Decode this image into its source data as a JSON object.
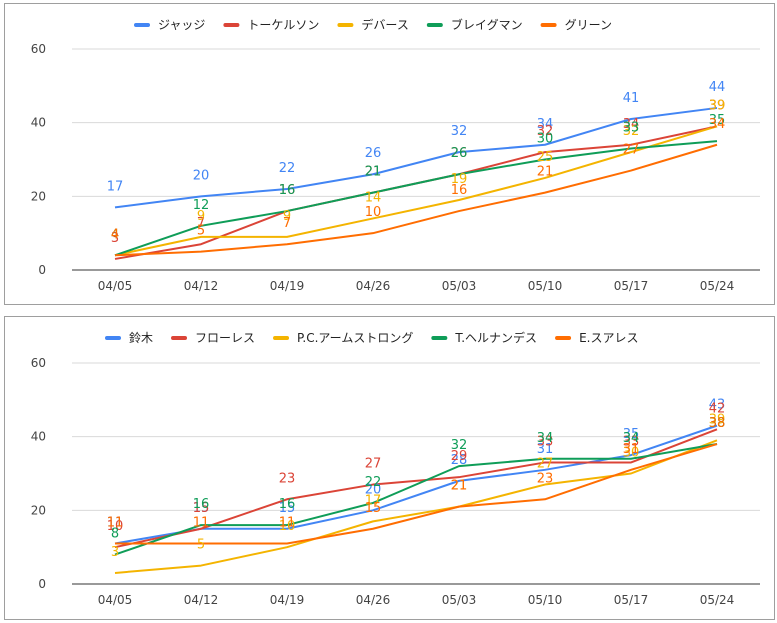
{
  "chart_data": [
    {
      "type": "line",
      "title": "",
      "xlabel": "",
      "ylabel": "",
      "ylim": [
        0,
        60
      ],
      "yticks": [
        "0",
        "20",
        "40",
        "60"
      ],
      "grid": true,
      "legend_position": "top",
      "categories": [
        "04/05",
        "04/12",
        "04/19",
        "04/26",
        "05/03",
        "05/10",
        "05/17",
        "05/24"
      ],
      "series": [
        {
          "name": "ジャッジ",
          "color": "#4285f4",
          "values": [
            17,
            20,
            22,
            26,
            32,
            34,
            41,
            44
          ]
        },
        {
          "name": "トーケルソン",
          "color": "#db4437",
          "values": [
            3,
            7,
            16,
            21,
            26,
            32,
            34,
            39
          ]
        },
        {
          "name": "デバース",
          "color": "#f4b400",
          "values": [
            4,
            9,
            9,
            14,
            19,
            25,
            32,
            39
          ]
        },
        {
          "name": "ブレイグマン",
          "color": "#0f9d58",
          "values": [
            4,
            12,
            16,
            21,
            26,
            30,
            33,
            35
          ]
        },
        {
          "name": "グリーン",
          "color": "#ff6d01",
          "values": [
            4,
            5,
            7,
            10,
            16,
            21,
            27,
            34
          ]
        }
      ]
    },
    {
      "type": "line",
      "title": "",
      "xlabel": "",
      "ylabel": "",
      "ylim": [
        0,
        60
      ],
      "yticks": [
        "0",
        "20",
        "40",
        "60"
      ],
      "grid": true,
      "legend_position": "top",
      "categories": [
        "04/05",
        "04/12",
        "04/19",
        "04/26",
        "05/03",
        "05/10",
        "05/17",
        "05/24"
      ],
      "series": [
        {
          "name": "鈴木",
          "color": "#4285f4",
          "values": [
            11,
            15,
            15,
            20,
            28,
            31,
            35,
            43
          ]
        },
        {
          "name": "フローレス",
          "color": "#db4437",
          "values": [
            10,
            15,
            23,
            27,
            29,
            33,
            33,
            42
          ]
        },
        {
          "name": "P.C.アームストロング",
          "color": "#f4b400",
          "values": [
            3,
            5,
            10,
            17,
            21,
            27,
            30,
            39
          ]
        },
        {
          "name": "T.ヘルナンデス",
          "color": "#0f9d58",
          "values": [
            8,
            16,
            16,
            22,
            32,
            34,
            34,
            38
          ]
        },
        {
          "name": "E.スアレス",
          "color": "#ff6d01",
          "values": [
            11,
            11,
            11,
            15,
            21,
            23,
            31,
            38
          ]
        }
      ]
    }
  ]
}
